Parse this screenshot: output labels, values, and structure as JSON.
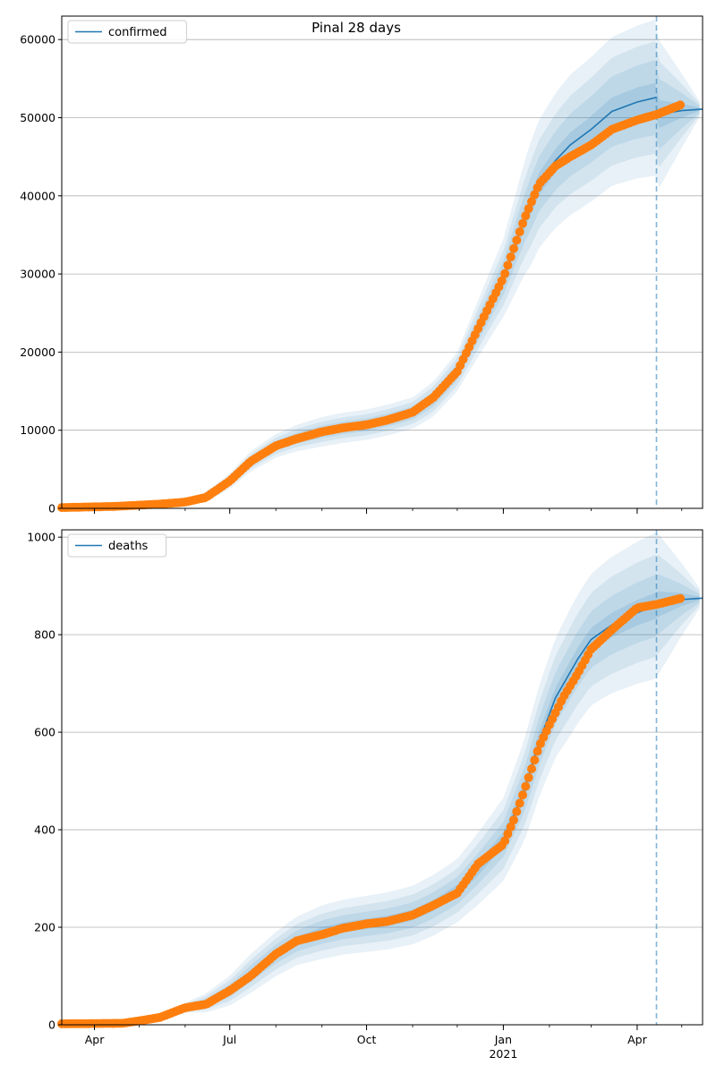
{
  "figure": {
    "title": "Pinal 28 days",
    "colors": {
      "model_line": "#1f77b4",
      "observed": "#ff7f0e",
      "band": "#1f77b4",
      "grid": "#b0b0b0",
      "vline": "#1f77b4"
    }
  },
  "chart_data": [
    {
      "type": "line",
      "title": "Pinal 28 days",
      "legend": {
        "entries": [
          "confirmed"
        ],
        "placement": "upper-left"
      },
      "grid": "horizontal",
      "x_range": [
        "2020-03-10",
        "2021-05-15"
      ],
      "ylim": [
        0,
        63000
      ],
      "y_ticks": [
        0,
        10000,
        20000,
        30000,
        40000,
        50000,
        60000
      ],
      "x_ticks": [
        {
          "date": "2020-04-01",
          "label": "Apr",
          "sub": ""
        },
        {
          "date": "2020-07-01",
          "label": "Jul",
          "sub": ""
        },
        {
          "date": "2020-10-01",
          "label": "Oct",
          "sub": ""
        },
        {
          "date": "2021-01-01",
          "label": "Jan",
          "sub": "2021"
        },
        {
          "date": "2021-04-01",
          "label": "Apr",
          "sub": ""
        }
      ],
      "forecast_start": "2021-04-14",
      "series": [
        {
          "name": "confirmed",
          "kind": "model",
          "points": [
            [
              "2020-03-10",
              150
            ],
            [
              "2020-04-15",
              300
            ],
            [
              "2020-05-15",
              600
            ],
            [
              "2020-06-01",
              800
            ],
            [
              "2020-06-15",
              1500
            ],
            [
              "2020-07-01",
              3500
            ],
            [
              "2020-07-15",
              6000
            ],
            [
              "2020-08-01",
              8000
            ],
            [
              "2020-08-15",
              9000
            ],
            [
              "2020-09-01",
              9800
            ],
            [
              "2020-09-15",
              10300
            ],
            [
              "2020-10-01",
              10700
            ],
            [
              "2020-10-15",
              11300
            ],
            [
              "2020-11-01",
              12200
            ],
            [
              "2020-11-15",
              14000
            ],
            [
              "2020-12-01",
              17500
            ],
            [
              "2020-12-15",
              23000
            ],
            [
              "2021-01-01",
              29500
            ],
            [
              "2021-01-15",
              37000
            ],
            [
              "2021-01-25",
              41500
            ],
            [
              "2021-02-05",
              44500
            ],
            [
              "2021-02-15",
              46500
            ],
            [
              "2021-03-01",
              48500
            ],
            [
              "2021-03-15",
              50800
            ],
            [
              "2021-04-01",
              52000
            ],
            [
              "2021-04-14",
              52600
            ]
          ],
          "forecast_points": [
            [
              "2021-04-14",
              50400
            ],
            [
              "2021-05-01",
              50900
            ],
            [
              "2021-05-15",
              51100
            ]
          ],
          "band_widths": [
            [
              [
                "2020-03-10",
                60
              ],
              [
                "2020-06-01",
                300
              ],
              [
                "2020-07-15",
                1300
              ],
              [
                "2020-09-01",
                1900
              ],
              [
                "2020-11-01",
                2000
              ],
              [
                "2020-12-01",
                2500
              ],
              [
                "2021-01-01",
                5000
              ],
              [
                "2021-01-20",
                8000
              ],
              [
                "2021-02-15",
                9000
              ],
              [
                "2021-03-15",
                9500
              ],
              [
                "2021-04-14",
                10000
              ],
              [
                "2021-05-15",
                400
              ]
            ],
            [
              [
                "2020-03-10",
                40
              ],
              [
                "2020-06-01",
                200
              ],
              [
                "2020-07-15",
                900
              ],
              [
                "2020-09-01",
                1300
              ],
              [
                "2020-11-01",
                1400
              ],
              [
                "2020-12-01",
                1800
              ],
              [
                "2021-01-01",
                3500
              ],
              [
                "2021-01-20",
                5500
              ],
              [
                "2021-02-15",
                6300
              ],
              [
                "2021-03-15",
                6900
              ],
              [
                "2021-04-14",
                7200
              ],
              [
                "2021-05-15",
                280
              ]
            ],
            [
              [
                "2020-03-10",
                25
              ],
              [
                "2020-06-01",
                120
              ],
              [
                "2020-07-15",
                500
              ],
              [
                "2020-09-01",
                800
              ],
              [
                "2020-11-01",
                850
              ],
              [
                "2020-12-01",
                1100
              ],
              [
                "2021-01-01",
                2200
              ],
              [
                "2021-01-20",
                3400
              ],
              [
                "2021-02-15",
                4000
              ],
              [
                "2021-03-15",
                4500
              ],
              [
                "2021-04-14",
                4800
              ],
              [
                "2021-05-15",
                180
              ]
            ],
            [
              [
                "2020-03-10",
                10
              ],
              [
                "2020-06-01",
                50
              ],
              [
                "2020-07-15",
                200
              ],
              [
                "2020-09-01",
                350
              ],
              [
                "2020-11-01",
                380
              ],
              [
                "2020-12-01",
                500
              ],
              [
                "2021-01-01",
                900
              ],
              [
                "2021-01-20",
                1400
              ],
              [
                "2021-02-15",
                1600
              ],
              [
                "2021-03-15",
                1800
              ],
              [
                "2021-04-14",
                1900
              ],
              [
                "2021-05-15",
                80
              ]
            ]
          ]
        },
        {
          "name": "confirmed observed",
          "kind": "observed",
          "start": "2020-03-10",
          "end": "2021-05-01",
          "points": [
            [
              "2020-03-10",
              100
            ],
            [
              "2020-04-15",
              250
            ],
            [
              "2020-05-15",
              550
            ],
            [
              "2020-06-01",
              800
            ],
            [
              "2020-06-15",
              1400
            ],
            [
              "2020-07-01",
              3500
            ],
            [
              "2020-07-15",
              6000
            ],
            [
              "2020-08-01",
              8000
            ],
            [
              "2020-08-15",
              8900
            ],
            [
              "2020-09-01",
              9800
            ],
            [
              "2020-09-15",
              10300
            ],
            [
              "2020-10-01",
              10700
            ],
            [
              "2020-10-15",
              11300
            ],
            [
              "2020-11-01",
              12300
            ],
            [
              "2020-11-15",
              14200
            ],
            [
              "2020-12-01",
              17500
            ],
            [
              "2020-12-15",
              23000
            ],
            [
              "2021-01-01",
              29500
            ],
            [
              "2021-01-15",
              37000
            ],
            [
              "2021-01-25",
              41500
            ],
            [
              "2021-02-05",
              43800
            ],
            [
              "2021-02-15",
              45000
            ],
            [
              "2021-03-01",
              46500
            ],
            [
              "2021-03-15",
              48500
            ],
            [
              "2021-04-01",
              49700
            ],
            [
              "2021-04-14",
              50400
            ],
            [
              "2021-05-01",
              51700
            ]
          ]
        }
      ]
    },
    {
      "type": "line",
      "legend": {
        "entries": [
          "deaths"
        ],
        "placement": "upper-left"
      },
      "grid": "horizontal",
      "x_range": [
        "2020-03-10",
        "2021-05-15"
      ],
      "ylim": [
        0,
        1015
      ],
      "y_ticks": [
        0,
        200,
        400,
        600,
        800,
        1000
      ],
      "x_ticks": [
        {
          "date": "2020-04-01",
          "label": "Apr",
          "sub": ""
        },
        {
          "date": "2020-07-01",
          "label": "Jul",
          "sub": ""
        },
        {
          "date": "2020-10-01",
          "label": "Oct",
          "sub": ""
        },
        {
          "date": "2021-01-01",
          "label": "Jan",
          "sub": "2021"
        },
        {
          "date": "2021-04-01",
          "label": "Apr",
          "sub": ""
        }
      ],
      "forecast_start": "2021-04-14",
      "series": [
        {
          "name": "deaths",
          "kind": "model",
          "points": [
            [
              "2020-03-10",
              2
            ],
            [
              "2020-04-20",
              3
            ],
            [
              "2020-05-15",
              15
            ],
            [
              "2020-06-01",
              35
            ],
            [
              "2020-06-15",
              45
            ],
            [
              "2020-07-01",
              70
            ],
            [
              "2020-07-15",
              105
            ],
            [
              "2020-08-01",
              145
            ],
            [
              "2020-08-15",
              172
            ],
            [
              "2020-09-01",
              190
            ],
            [
              "2020-09-15",
              200
            ],
            [
              "2020-10-01",
              207
            ],
            [
              "2020-10-15",
              213
            ],
            [
              "2020-11-01",
              225
            ],
            [
              "2020-11-15",
              245
            ],
            [
              "2020-12-01",
              275
            ],
            [
              "2020-12-15",
              320
            ],
            [
              "2021-01-01",
              380
            ],
            [
              "2021-01-15",
              480
            ],
            [
              "2021-01-25",
              580
            ],
            [
              "2021-02-05",
              670
            ],
            [
              "2021-02-20",
              750
            ],
            [
              "2021-03-01",
              790
            ],
            [
              "2021-03-15",
              820
            ],
            [
              "2021-04-01",
              845
            ],
            [
              "2021-04-14",
              860
            ]
          ],
          "forecast_points": [
            [
              "2021-04-14",
              862
            ],
            [
              "2021-05-01",
              872
            ],
            [
              "2021-05-15",
              875
            ]
          ],
          "band_widths": [
            [
              [
                "2020-03-10",
                2
              ],
              [
                "2020-06-01",
                10
              ],
              [
                "2020-07-15",
                40
              ],
              [
                "2020-09-01",
                55
              ],
              [
                "2020-11-01",
                60
              ],
              [
                "2020-12-01",
                65
              ],
              [
                "2021-01-01",
                85
              ],
              [
                "2021-01-20",
                110
              ],
              [
                "2021-02-15",
                130
              ],
              [
                "2021-03-15",
                140
              ],
              [
                "2021-04-14",
                150
              ],
              [
                "2021-05-15",
                12
              ]
            ],
            [
              [
                "2020-03-10",
                1.5
              ],
              [
                "2020-06-01",
                7
              ],
              [
                "2020-07-15",
                28
              ],
              [
                "2020-09-01",
                38
              ],
              [
                "2020-11-01",
                42
              ],
              [
                "2020-12-01",
                45
              ],
              [
                "2021-01-01",
                60
              ],
              [
                "2021-01-20",
                78
              ],
              [
                "2021-02-15",
                92
              ],
              [
                "2021-03-15",
                100
              ],
              [
                "2021-04-14",
                105
              ],
              [
                "2021-05-15",
                8
              ]
            ],
            [
              [
                "2020-03-10",
                1
              ],
              [
                "2020-06-01",
                4
              ],
              [
                "2020-07-15",
                17
              ],
              [
                "2020-09-01",
                24
              ],
              [
                "2020-11-01",
                26
              ],
              [
                "2020-12-01",
                28
              ],
              [
                "2021-01-01",
                36
              ],
              [
                "2021-01-20",
                48
              ],
              [
                "2021-02-15",
                56
              ],
              [
                "2021-03-15",
                60
              ],
              [
                "2021-04-14",
                64
              ],
              [
                "2021-05-15",
                5
              ]
            ],
            [
              [
                "2020-03-10",
                0.5
              ],
              [
                "2020-06-01",
                2
              ],
              [
                "2020-07-15",
                7
              ],
              [
                "2020-09-01",
                10
              ],
              [
                "2020-11-01",
                11
              ],
              [
                "2020-12-01",
                12
              ],
              [
                "2021-01-01",
                15
              ],
              [
                "2021-01-20",
                20
              ],
              [
                "2021-02-15",
                23
              ],
              [
                "2021-03-15",
                25
              ],
              [
                "2021-04-14",
                27
              ],
              [
                "2021-05-15",
                2
              ]
            ]
          ]
        },
        {
          "name": "deaths observed",
          "kind": "observed",
          "start": "2020-03-10",
          "end": "2021-05-01",
          "points": [
            [
              "2020-03-10",
              2
            ],
            [
              "2020-04-20",
              3
            ],
            [
              "2020-05-01",
              8
            ],
            [
              "2020-05-15",
              15
            ],
            [
              "2020-06-01",
              35
            ],
            [
              "2020-06-15",
              42
            ],
            [
              "2020-07-01",
              70
            ],
            [
              "2020-07-15",
              100
            ],
            [
              "2020-08-01",
              145
            ],
            [
              "2020-08-15",
              172
            ],
            [
              "2020-09-01",
              185
            ],
            [
              "2020-09-15",
              198
            ],
            [
              "2020-10-01",
              207
            ],
            [
              "2020-10-15",
              212
            ],
            [
              "2020-11-01",
              225
            ],
            [
              "2020-11-15",
              245
            ],
            [
              "2020-12-01",
              270
            ],
            [
              "2020-12-15",
              330
            ],
            [
              "2021-01-01",
              370
            ],
            [
              "2021-01-08",
              420
            ],
            [
              "2021-01-15",
              480
            ],
            [
              "2021-01-25",
              570
            ],
            [
              "2021-02-01",
              615
            ],
            [
              "2021-02-10",
              670
            ],
            [
              "2021-02-20",
              720
            ],
            [
              "2021-03-01",
              770
            ],
            [
              "2021-03-15",
              810
            ],
            [
              "2021-04-01",
              855
            ],
            [
              "2021-04-14",
              862
            ],
            [
              "2021-05-01",
              875
            ]
          ]
        }
      ]
    }
  ]
}
